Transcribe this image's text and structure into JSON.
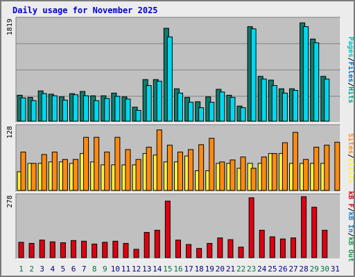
{
  "window": {
    "title": "Daily usage for November 2025"
  },
  "chart_data": {
    "type": "bar",
    "title": "Daily usage for November 2025",
    "categories": [
      "1",
      "2",
      "3",
      "4",
      "5",
      "6",
      "7",
      "8",
      "9",
      "10",
      "11",
      "12",
      "13",
      "14",
      "15",
      "16",
      "17",
      "18",
      "19",
      "20",
      "21",
      "22",
      "23",
      "24",
      "25",
      "26",
      "27",
      "28",
      "29",
      "30",
      "31"
    ],
    "weekend_days": [
      "1",
      "2",
      "8",
      "9",
      "15",
      "16",
      "22",
      "23",
      "29",
      "30"
    ],
    "colors": {
      "pages": "#00c0c0",
      "files": "#0070c0",
      "hits": "#00a080",
      "hits_bar": "#0e7c6a",
      "files_bar": "#00d8f0",
      "visits_bar": "#fff23a",
      "sites_bar": "#ff8a10",
      "kb_bar": "#e00010",
      "kb_in": "#1e7fd0",
      "kb_out": "#10a050",
      "kb_f": "#e00010",
      "weekday_label": "#000080",
      "weekend_label": "#007040"
    },
    "panels": [
      {
        "id": "hits_files",
        "max_label": "1819",
        "ylim": [
          0,
          1819
        ],
        "axis_title": [
          {
            "text": "Pages",
            "color": "#00c0c0"
          },
          {
            "text": "/",
            "color": "#000000"
          },
          {
            "text": "Files",
            "color": "#0070c0"
          },
          {
            "text": "/",
            "color": "#000000"
          },
          {
            "text": "Hits",
            "color": "#00a080"
          }
        ],
        "series": [
          {
            "name": "Hits",
            "values": [
              480,
              440,
              560,
              500,
              450,
              510,
              550,
              470,
              470,
              520,
              450,
              260,
              770,
              770,
              1719,
              600,
              440,
              360,
              450,
              590,
              480,
              280,
              1749,
              830,
              760,
              600,
              600,
              1819,
              1520,
              830,
              null
            ]
          },
          {
            "name": "Files",
            "values": [
              430,
              380,
              510,
              470,
              390,
              490,
              470,
              380,
              420,
              460,
              410,
              200,
              660,
              740,
              1559,
              520,
              350,
              250,
              350,
              540,
              440,
              250,
              1709,
              780,
              660,
              520,
              570,
              1749,
              1450,
              780,
              null
            ]
          }
        ]
      },
      {
        "id": "visits_sites",
        "max_label": "128",
        "ylim": [
          0,
          128
        ],
        "axis_title": [
          {
            "text": "Sites",
            "color": "#ff8a10"
          },
          {
            "text": "/",
            "color": "#000000"
          },
          {
            "text": "Visits",
            "color": "#fff23a"
          }
        ],
        "series": [
          {
            "name": "Visits",
            "values": [
              38,
              55,
              55,
              58,
              58,
              55,
              75,
              58,
              52,
              52,
              52,
              52,
              75,
              72,
              58,
              58,
              70,
              40,
              40,
              55,
              55,
              45,
              55,
              55,
              75,
              75,
              55,
              55,
              55,
              55,
              null
            ]
          },
          {
            "name": "Sites",
            "values": [
              78,
              55,
              73,
              78,
              63,
              63,
              108,
              108,
              78,
              108,
              83,
              63,
              88,
              123,
              92,
              78,
              83,
              93,
              106,
              58,
              62,
              68,
              45,
              68,
              75,
              97,
              118,
              63,
              88,
              92,
              98
            ]
          }
        ]
      },
      {
        "id": "kbytes",
        "max_label": "278",
        "ylim": [
          0,
          278
        ],
        "axis_title": [
          {
            "text": "kB F",
            "color": "#e00010"
          },
          {
            "text": "/",
            "color": "#000000"
          },
          {
            "text": "kB In",
            "color": "#1e7fd0"
          },
          {
            "text": "/",
            "color": "#000000"
          },
          {
            "text": "kB Out",
            "color": "#10a050"
          }
        ],
        "series": [
          {
            "name": "kB F",
            "values": [
              70,
              65,
              80,
              72,
              68,
              78,
              75,
              62,
              70,
              75,
              65,
              38,
              115,
              125,
              258,
              80,
              60,
              42,
              65,
              90,
              82,
              48,
              273,
              125,
              95,
              85,
              90,
              278,
              230,
              125,
              null
            ]
          }
        ]
      }
    ]
  }
}
